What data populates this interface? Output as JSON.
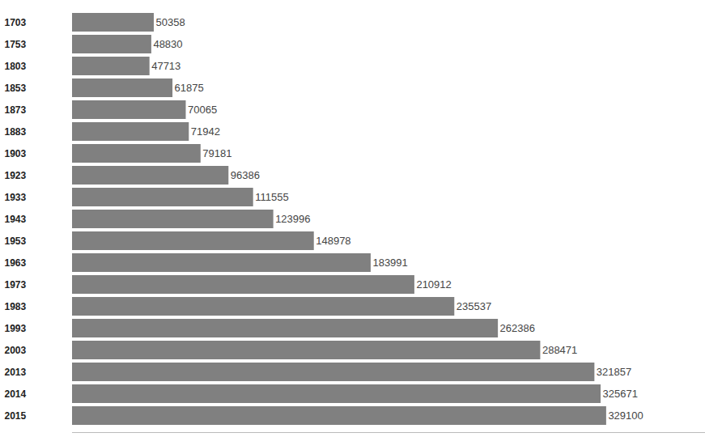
{
  "chart_data": {
    "type": "bar",
    "orientation": "horizontal",
    "categories": [
      "1703",
      "1753",
      "1803",
      "1853",
      "1873",
      "1883",
      "1903",
      "1923",
      "1933",
      "1943",
      "1953",
      "1963",
      "1973",
      "1983",
      "1993",
      "2003",
      "2013",
      "2014",
      "2015"
    ],
    "values": [
      50358,
      48830,
      47713,
      61875,
      70065,
      71942,
      79181,
      96386,
      111555,
      123996,
      148978,
      183991,
      210912,
      235537,
      262386,
      288471,
      321857,
      325671,
      329100
    ],
    "color": "#808080",
    "xlim": [
      0,
      390000
    ],
    "xticks": [],
    "data_labels": true,
    "tick_labels": "y",
    "grid": false
  }
}
